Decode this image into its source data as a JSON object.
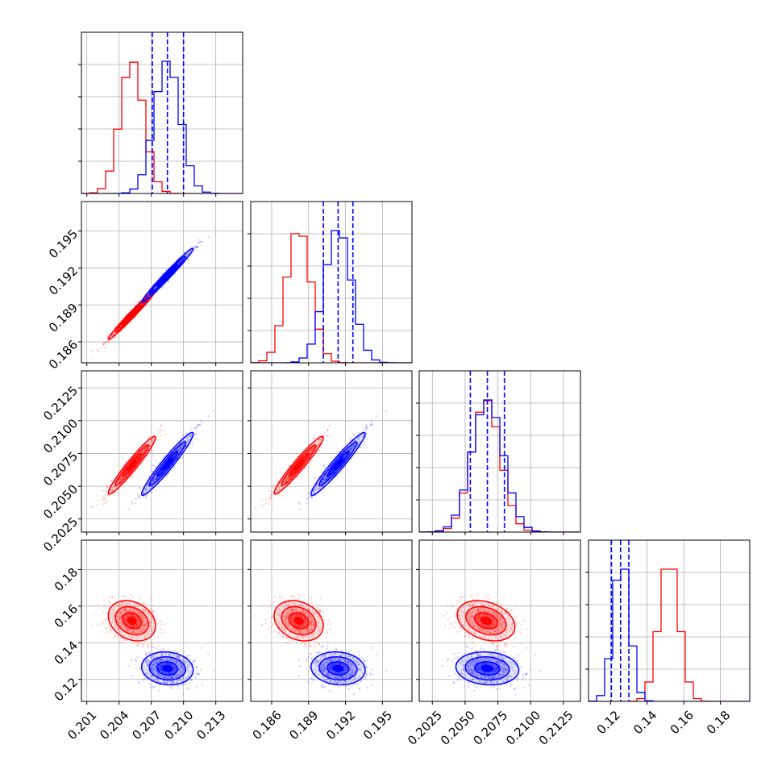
{
  "chart_data": {
    "type": "scatter",
    "title": "",
    "plot_kind": "corner plot (pairwise 2D posteriors with 1D marginal histograms)",
    "grid": true,
    "colors": {
      "series_a": "#ff0000",
      "series_b": "#0000ff"
    },
    "parameters": [
      {
        "index": 0,
        "range": [
          0.2005,
          0.2155
        ],
        "ticks": [
          0.201,
          0.204,
          0.207,
          0.21,
          0.213
        ],
        "tick_labels": [
          "0.201",
          "0.204",
          "0.207",
          "0.210",
          "0.213"
        ]
      },
      {
        "index": 1,
        "range": [
          0.1843,
          0.1974
        ],
        "ticks": [
          0.186,
          0.189,
          0.192,
          0.195
        ],
        "tick_labels": [
          "0.186",
          "0.189",
          "0.192",
          "0.195"
        ]
      },
      {
        "index": 2,
        "range": [
          0.2015,
          0.2138
        ],
        "ticks": [
          0.2025,
          0.205,
          0.2075,
          0.21,
          0.2125
        ],
        "tick_labels": [
          "0.2025",
          "0.2050",
          "0.2075",
          "0.2100",
          "0.2125"
        ]
      },
      {
        "index": 3,
        "range": [
          0.108,
          0.196
        ],
        "ticks": [
          0.12,
          0.14,
          0.16,
          0.18
        ],
        "tick_labels": [
          "0.12",
          "0.14",
          "0.16",
          "0.18"
        ]
      }
    ],
    "series": [
      {
        "color": "#ff0000",
        "means": [
          0.2052,
          0.1882,
          0.2066,
          0.152
        ],
        "sigmas": [
          0.0011,
          0.001,
          0.0011,
          0.0055
        ],
        "correlations": {
          "0-1": 0.985,
          "0-2": 0.96,
          "1-2": 0.96,
          "0-3": -0.25,
          "1-3": -0.25,
          "2-3": -0.3
        }
      },
      {
        "color": "#0000ff",
        "means": [
          0.2085,
          0.1914,
          0.2067,
          0.126
        ],
        "sigmas": [
          0.0012,
          0.0011,
          0.0012,
          0.0045
        ],
        "correlations": {
          "0-1": 0.985,
          "0-2": 0.96,
          "1-2": 0.96,
          "0-3": -0.1,
          "1-3": -0.1,
          "2-3": -0.1
        },
        "quantiles": [
          [
            0.2071,
            0.2085,
            0.21
          ],
          [
            0.1902,
            0.1914,
            0.1926
          ],
          [
            0.2054,
            0.2067,
            0.208
          ],
          [
            0.1205,
            0.1255,
            0.13
          ]
        ]
      }
    ]
  }
}
